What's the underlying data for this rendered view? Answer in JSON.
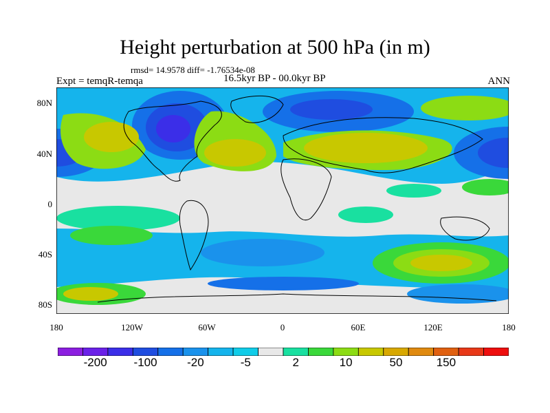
{
  "title": "Height perturbation at 500 hPa (in m)",
  "stats": "rmsd= 14.9578 diff= -1.76534e-08",
  "left_label": "Expt = temqR-temqa",
  "center_label": "16.5kyr BP - 00.0kyr BP",
  "right_label": "ANN",
  "axes": {
    "lat_ticks": [
      "80N",
      "40N",
      "0",
      "40S",
      "80S"
    ],
    "lon_ticks": [
      "180",
      "120W",
      "60W",
      "0",
      "60E",
      "120E",
      "180"
    ]
  },
  "colorbar": {
    "colors": [
      "#8c1ee0",
      "#6a20e8",
      "#3b2ee8",
      "#1f4de0",
      "#1570e8",
      "#1a92ec",
      "#15b4ec",
      "#10cce8",
      "#e8e8e8",
      "#19e0a0",
      "#3ad83a",
      "#8cdc14",
      "#c8c800",
      "#d8a800",
      "#e08a10",
      "#e06010",
      "#e83818",
      "#ee0e0e"
    ],
    "tick_labels": [
      "-200",
      "-100",
      "-20",
      "-5",
      "2",
      "10",
      "50",
      "150"
    ]
  }
}
